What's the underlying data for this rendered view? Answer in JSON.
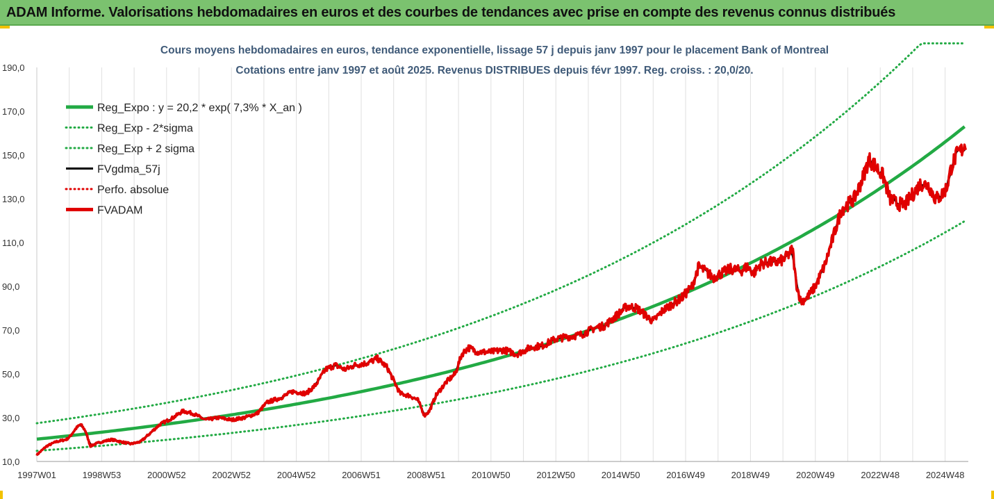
{
  "header": {
    "title": "ADAM Informe. Valorisations hebdomadaires en euros et des courbes de tendances avec prise en compte des revenus connus distribués"
  },
  "chart_data": {
    "type": "line",
    "title": "Cours moyens hebdomadaires en euros, tendance exponentielle, lissage 57 j depuis janv 1997 pour le placement Bank of Montreal",
    "subtitle": "Cotations entre janv 1997 et août 2025.  Revenus DISTRIBUES depuis févr 1997.  Reg. croiss. : 20,0/20.",
    "ylim": [
      10,
      190
    ],
    "yticks": [
      "10,0",
      "30,0",
      "50,0",
      "70,0",
      "90,0",
      "110,0",
      "130,0",
      "150,0",
      "170,0",
      "190,0"
    ],
    "x_tick_labels": [
      "1997W01",
      "1998W53",
      "2000W52",
      "2002W52",
      "2004W52",
      "2006W51",
      "2008W51",
      "2010W50",
      "2012W50",
      "2014W50",
      "2016W49",
      "2018W49",
      "2020W49",
      "2022W48",
      "2024W48"
    ],
    "xlim": [
      1997.0,
      2025.65
    ],
    "grid": "vertical",
    "legend_position": "top-left",
    "regression": {
      "a": 20.2,
      "rate": 0.073
    },
    "series": [
      {
        "name": "Reg_Expo : y = 20,2 * exp( 7,3% *  X_an )",
        "color": "#22aa44",
        "style": "solid-thick"
      },
      {
        "name": "Reg_Exp - 2*sigma",
        "color": "#22aa44",
        "style": "dotted"
      },
      {
        "name": "Reg_Exp + 2 sigma",
        "color": "#22aa44",
        "style": "dotted"
      },
      {
        "name": "FVgdma_57j",
        "color": "#000000",
        "style": "solid"
      },
      {
        "name": "Perfo. absolue",
        "color": "#e00000",
        "style": "dotted"
      },
      {
        "name": "FVADAM",
        "color": "#e00000",
        "style": "solid-thick"
      }
    ],
    "fvadam_points": [
      [
        1997.0,
        13
      ],
      [
        1997.3,
        17
      ],
      [
        1997.6,
        19
      ],
      [
        1997.9,
        20
      ],
      [
        1998.0,
        21
      ],
      [
        1998.2,
        25
      ],
      [
        1998.35,
        27
      ],
      [
        1998.5,
        24
      ],
      [
        1998.65,
        17
      ],
      [
        1998.8,
        18
      ],
      [
        1999.0,
        19
      ],
      [
        1999.3,
        20
      ],
      [
        1999.6,
        19
      ],
      [
        1999.9,
        18
      ],
      [
        2000.2,
        19
      ],
      [
        2000.5,
        23
      ],
      [
        2000.8,
        27
      ],
      [
        2001.2,
        30
      ],
      [
        2001.5,
        33
      ],
      [
        2001.8,
        32
      ],
      [
        2002.2,
        29
      ],
      [
        2002.6,
        30
      ],
      [
        2003.0,
        29
      ],
      [
        2003.4,
        30
      ],
      [
        2003.8,
        32
      ],
      [
        2004.1,
        37
      ],
      [
        2004.5,
        39
      ],
      [
        2004.9,
        42
      ],
      [
        2005.3,
        41
      ],
      [
        2005.6,
        45
      ],
      [
        2005.9,
        52
      ],
      [
        2006.2,
        54
      ],
      [
        2006.5,
        52
      ],
      [
        2006.8,
        54
      ],
      [
        2007.2,
        55
      ],
      [
        2007.5,
        57
      ],
      [
        2007.8,
        53
      ],
      [
        2008.0,
        47
      ],
      [
        2008.2,
        41
      ],
      [
        2008.5,
        40
      ],
      [
        2008.75,
        38
      ],
      [
        2008.95,
        31
      ],
      [
        2009.1,
        33
      ],
      [
        2009.3,
        40
      ],
      [
        2009.6,
        46
      ],
      [
        2009.9,
        50
      ],
      [
        2010.1,
        59
      ],
      [
        2010.3,
        62
      ],
      [
        2010.6,
        60
      ],
      [
        2011.0,
        60
      ],
      [
        2011.4,
        61
      ],
      [
        2011.8,
        59
      ],
      [
        2012.2,
        62
      ],
      [
        2012.6,
        63
      ],
      [
        2013.0,
        66
      ],
      [
        2013.4,
        67
      ],
      [
        2013.8,
        68
      ],
      [
        2014.2,
        71
      ],
      [
        2014.5,
        72
      ],
      [
        2014.9,
        77
      ],
      [
        2015.2,
        81
      ],
      [
        2015.5,
        80
      ],
      [
        2015.75,
        77
      ],
      [
        2016.0,
        74
      ],
      [
        2016.3,
        79
      ],
      [
        2016.6,
        82
      ],
      [
        2016.9,
        85
      ],
      [
        2017.2,
        90
      ],
      [
        2017.4,
        99
      ],
      [
        2017.6,
        97
      ],
      [
        2017.85,
        94
      ],
      [
        2018.1,
        96
      ],
      [
        2018.4,
        98
      ],
      [
        2018.7,
        97
      ],
      [
        2018.9,
        99
      ],
      [
        2019.1,
        96
      ],
      [
        2019.3,
        100
      ],
      [
        2019.55,
        101
      ],
      [
        2019.8,
        101
      ],
      [
        2020.0,
        102
      ],
      [
        2020.15,
        104
      ],
      [
        2020.3,
        107
      ],
      [
        2020.4,
        92
      ],
      [
        2020.55,
        83
      ],
      [
        2020.75,
        85
      ],
      [
        2021.0,
        90
      ],
      [
        2021.3,
        100
      ],
      [
        2021.5,
        110
      ],
      [
        2021.8,
        125
      ],
      [
        2022.2,
        130
      ],
      [
        2022.45,
        139
      ],
      [
        2022.65,
        148
      ],
      [
        2022.85,
        145
      ],
      [
        2023.1,
        140
      ],
      [
        2023.3,
        130
      ],
      [
        2023.5,
        128
      ],
      [
        2023.75,
        127
      ],
      [
        2024.0,
        132
      ],
      [
        2024.25,
        137
      ],
      [
        2024.5,
        136
      ],
      [
        2024.7,
        130
      ],
      [
        2024.85,
        131
      ],
      [
        2025.05,
        135
      ],
      [
        2025.2,
        145
      ],
      [
        2025.35,
        150
      ],
      [
        2025.5,
        152
      ],
      [
        2025.65,
        156
      ]
    ]
  }
}
